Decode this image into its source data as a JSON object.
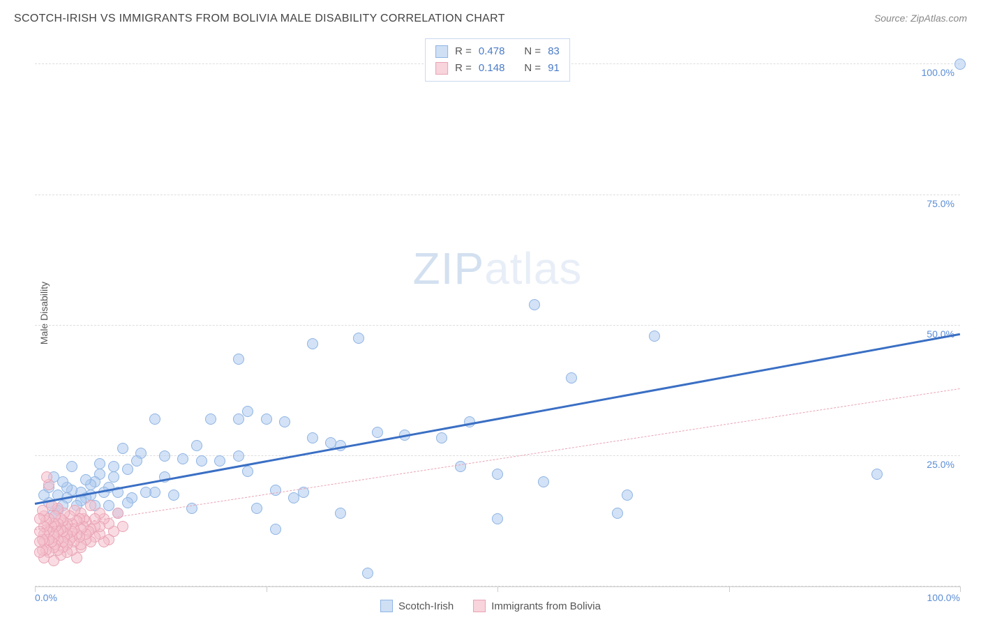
{
  "title": "SCOTCH-IRISH VS IMMIGRANTS FROM BOLIVIA MALE DISABILITY CORRELATION CHART",
  "source": "Source: ZipAtlas.com",
  "ylabel": "Male Disability",
  "watermark_a": "ZIP",
  "watermark_b": "atlas",
  "chart": {
    "type": "scatter",
    "xlim": [
      0,
      100
    ],
    "ylim": [
      0,
      105
    ],
    "y_gridlines": [
      0,
      25,
      50,
      75,
      100
    ],
    "y_tick_labels": {
      "25": "25.0%",
      "50": "50.0%",
      "75": "75.0%",
      "100": "100.0%"
    },
    "x_tick_labels": {
      "0": "0.0%",
      "100": "100.0%"
    },
    "x_vticks_pct": [
      0,
      25,
      50,
      75,
      100
    ],
    "grid_color": "#dddddd",
    "axis_color": "#cccccc",
    "background_color": "#ffffff",
    "tick_label_color": "#5b8dd6",
    "axis_label_color": "#555555",
    "label_fontsize": 14,
    "title_fontsize": 16
  },
  "legend_top": {
    "rows": [
      {
        "swatch_fill": "#cfe0f5",
        "swatch_border": "#8fb4e3",
        "r_label": "R =",
        "r_value": "0.478",
        "n_label": "N =",
        "n_value": "83"
      },
      {
        "swatch_fill": "#f8d4dc",
        "swatch_border": "#e9a3b4",
        "r_label": "R =",
        "r_value": "0.148",
        "n_label": "N =",
        "n_value": "91"
      }
    ]
  },
  "legend_bottom": {
    "items": [
      {
        "swatch_fill": "#cfe0f5",
        "swatch_border": "#8fb4e3",
        "label": "Scotch-Irish"
      },
      {
        "swatch_fill": "#f8d4dc",
        "swatch_border": "#e9a3b4",
        "label": "Immigrants from Bolivia"
      }
    ]
  },
  "series": [
    {
      "name": "Scotch-Irish",
      "marker_fill": "rgba(174,203,238,0.55)",
      "marker_border": "#8fb4e3",
      "marker_radius": 8,
      "trend": {
        "x0": 0,
        "y0": 16,
        "x1": 100,
        "y1": 48.5,
        "color": "#3a6fc4",
        "width": 3,
        "dash": "solid"
      },
      "points": [
        [
          100,
          100
        ],
        [
          91,
          21.5
        ],
        [
          64,
          17.5
        ],
        [
          67,
          48
        ],
        [
          63,
          14
        ],
        [
          58,
          40
        ],
        [
          55,
          20
        ],
        [
          54,
          54
        ],
        [
          50,
          21.5
        ],
        [
          50,
          13
        ],
        [
          47,
          31.5
        ],
        [
          46,
          23
        ],
        [
          44,
          28.5
        ],
        [
          40,
          29
        ],
        [
          37,
          29.5
        ],
        [
          36,
          2.5
        ],
        [
          35,
          47.5
        ],
        [
          33,
          27
        ],
        [
          33,
          14
        ],
        [
          32,
          27.5
        ],
        [
          30,
          28.5
        ],
        [
          30,
          46.5
        ],
        [
          29,
          18
        ],
        [
          28,
          17
        ],
        [
          27,
          31.5
        ],
        [
          26,
          18.5
        ],
        [
          26,
          11
        ],
        [
          25,
          32
        ],
        [
          24,
          15
        ],
        [
          23,
          22
        ],
        [
          23,
          33.5
        ],
        [
          22,
          32
        ],
        [
          22,
          43.5
        ],
        [
          22,
          25
        ],
        [
          20,
          24
        ],
        [
          19,
          32
        ],
        [
          18,
          24
        ],
        [
          17.5,
          27
        ],
        [
          17,
          15
        ],
        [
          16,
          24.5
        ],
        [
          15,
          17.5
        ],
        [
          14,
          25
        ],
        [
          14,
          21
        ],
        [
          13,
          18
        ],
        [
          13,
          32
        ],
        [
          12,
          18
        ],
        [
          11.5,
          25.5
        ],
        [
          11,
          24
        ],
        [
          10.5,
          17
        ],
        [
          10,
          22.5
        ],
        [
          10,
          16
        ],
        [
          9.5,
          26.5
        ],
        [
          9,
          18
        ],
        [
          9,
          14
        ],
        [
          8.5,
          21
        ],
        [
          8.5,
          23
        ],
        [
          8,
          15.5
        ],
        [
          8,
          19
        ],
        [
          7.5,
          18
        ],
        [
          7,
          21.5
        ],
        [
          7,
          23.5
        ],
        [
          6.5,
          15.5
        ],
        [
          6.5,
          20
        ],
        [
          6,
          17.5
        ],
        [
          6,
          19.5
        ],
        [
          5.5,
          17
        ],
        [
          5.5,
          20.5
        ],
        [
          5,
          18
        ],
        [
          5,
          16.5
        ],
        [
          4.5,
          15.5
        ],
        [
          4,
          18.5
        ],
        [
          4,
          23
        ],
        [
          3.5,
          17
        ],
        [
          3.5,
          19
        ],
        [
          3,
          20
        ],
        [
          3,
          15.5
        ],
        [
          2.5,
          14.5
        ],
        [
          2.5,
          17.5
        ],
        [
          2,
          14
        ],
        [
          2,
          21
        ],
        [
          1.5,
          16
        ],
        [
          1.5,
          19
        ],
        [
          1,
          17.5
        ]
      ]
    },
    {
      "name": "Immigrants from Bolivia",
      "marker_fill": "rgba(244,191,204,0.55)",
      "marker_border": "#e9a3b4",
      "marker_radius": 8,
      "trend": {
        "x0": 0,
        "y0": 11,
        "x1": 100,
        "y1": 38,
        "color": "#e9a3b4",
        "width": 1.5,
        "dash": "dashed"
      },
      "points": [
        [
          9.5,
          11.5
        ],
        [
          9,
          14
        ],
        [
          8.5,
          10.5
        ],
        [
          8,
          12
        ],
        [
          8,
          9
        ],
        [
          7.5,
          13
        ],
        [
          7.5,
          8.5
        ],
        [
          7,
          14
        ],
        [
          7,
          10
        ],
        [
          7,
          11.5
        ],
        [
          6.5,
          11.5
        ],
        [
          6.5,
          9.5
        ],
        [
          6.5,
          13
        ],
        [
          6,
          8.5
        ],
        [
          6,
          11
        ],
        [
          6,
          15.5
        ],
        [
          5.8,
          10.5
        ],
        [
          5.5,
          12.5
        ],
        [
          5.5,
          9
        ],
        [
          5.5,
          10
        ],
        [
          5.3,
          13
        ],
        [
          5.2,
          11.5
        ],
        [
          5,
          14
        ],
        [
          5,
          7.5
        ],
        [
          5,
          11
        ],
        [
          5,
          8
        ],
        [
          4.8,
          9.5
        ],
        [
          4.8,
          13
        ],
        [
          4.5,
          10
        ],
        [
          4.5,
          5.5
        ],
        [
          4.5,
          12.5
        ],
        [
          4.3,
          14.5
        ],
        [
          4.2,
          8.5
        ],
        [
          4.2,
          11
        ],
        [
          4,
          12
        ],
        [
          4,
          9.5
        ],
        [
          4,
          7
        ],
        [
          4,
          10.5
        ],
        [
          3.8,
          13.5
        ],
        [
          3.8,
          9
        ],
        [
          3.5,
          8
        ],
        [
          3.5,
          12
        ],
        [
          3.5,
          10
        ],
        [
          3.5,
          6.5
        ],
        [
          3.3,
          11.5
        ],
        [
          3.2,
          14
        ],
        [
          3.2,
          9.5
        ],
        [
          3,
          12.5
        ],
        [
          3,
          7.5
        ],
        [
          3,
          10.5
        ],
        [
          3,
          8.5
        ],
        [
          2.8,
          11
        ],
        [
          2.8,
          13
        ],
        [
          2.8,
          6
        ],
        [
          2.5,
          15
        ],
        [
          2.5,
          7
        ],
        [
          2.5,
          12
        ],
        [
          2.5,
          9
        ],
        [
          2.5,
          10.5
        ],
        [
          2.3,
          11.5
        ],
        [
          2.2,
          8
        ],
        [
          2.2,
          13.5
        ],
        [
          2,
          9.5
        ],
        [
          2,
          12
        ],
        [
          2,
          5
        ],
        [
          2,
          10
        ],
        [
          2,
          7.5
        ],
        [
          1.8,
          11.5
        ],
        [
          1.8,
          15.5
        ],
        [
          1.8,
          8.5
        ],
        [
          1.5,
          10.5
        ],
        [
          1.5,
          13
        ],
        [
          1.5,
          19.5
        ],
        [
          1.5,
          6.5
        ],
        [
          1.5,
          9
        ],
        [
          1.3,
          11
        ],
        [
          1.3,
          21
        ],
        [
          1.2,
          7
        ],
        [
          1.2,
          12.5
        ],
        [
          1,
          8.5
        ],
        [
          1,
          13.5
        ],
        [
          1,
          10
        ],
        [
          1,
          5.5
        ],
        [
          1,
          11.5
        ],
        [
          0.8,
          9
        ],
        [
          0.8,
          14.5
        ],
        [
          0.8,
          7
        ],
        [
          0.5,
          10.5
        ],
        [
          0.5,
          6.5
        ],
        [
          0.5,
          13
        ],
        [
          0.5,
          8.5
        ]
      ]
    }
  ]
}
